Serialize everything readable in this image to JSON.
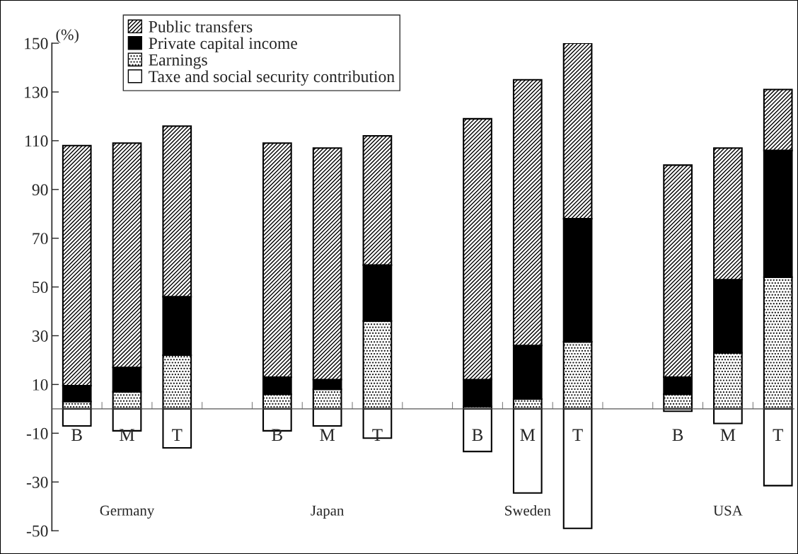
{
  "chart_data": {
    "type": "bar",
    "stacked": true,
    "ylabel": "(%)",
    "categories": [
      "B",
      "M",
      "T",
      null,
      "B",
      "M",
      "T",
      null,
      "B",
      "M",
      "T",
      null,
      "B",
      "M",
      "T"
    ],
    "series": [
      {
        "name": "Earnings",
        "color": "#000000",
        "values": [
          3,
          7,
          22,
          null,
          6,
          8,
          36,
          null,
          1,
          4,
          27.5,
          null,
          6,
          23,
          54
        ]
      },
      {
        "name": "Private capital income",
        "color": "#000000",
        "values": [
          6.5,
          10,
          24,
          null,
          7,
          4,
          23,
          null,
          11,
          22,
          50.5,
          null,
          7,
          30,
          52
        ]
      },
      {
        "name": "Public transfers",
        "color": "#000000",
        "values": [
          98.5,
          92,
          70,
          null,
          96,
          95,
          53,
          null,
          107,
          109,
          72,
          null,
          87,
          54,
          25
        ]
      },
      {
        "name": "Taxe and social security contribution",
        "color": "#ffffff",
        "values": [
          -7,
          -9,
          -16,
          null,
          -9,
          -7,
          -12,
          null,
          -17.5,
          -34.5,
          -49,
          null,
          -1,
          -6,
          -31.5
        ]
      }
    ],
    "ylim": [
      -50,
      150
    ],
    "yticks": [
      -50,
      -30,
      -10,
      10,
      30,
      50,
      70,
      90,
      110,
      130,
      150
    ],
    "annotations": [
      "Germany",
      "Japan",
      "Sweden",
      "USA"
    ],
    "legend": "top left",
    "grid": false
  }
}
